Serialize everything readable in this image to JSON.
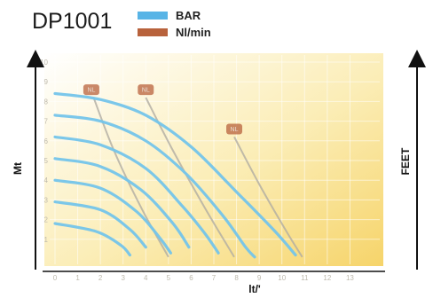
{
  "chart_data": {
    "type": "line",
    "title": "DP1001",
    "xlabel": "lt/'",
    "ylabel": "Mt",
    "y2label": "FEET",
    "legend": {
      "placement": "top",
      "entries": [
        {
          "name": "BAR",
          "color": "#58b4e6"
        },
        {
          "name": "Nl/min",
          "color": "#b8623c"
        }
      ]
    },
    "grid": true,
    "background_gradient": [
      "#ffffff",
      "#f7d870"
    ],
    "xlim": [
      0,
      14
    ],
    "ylim": [
      0,
      10
    ],
    "x_ticks": [
      0,
      1,
      2,
      3,
      4,
      5,
      6,
      7,
      8,
      9,
      10,
      11,
      12,
      13
    ],
    "y_ticks": [
      1,
      2,
      3,
      4,
      5,
      6,
      7,
      8,
      9,
      10
    ],
    "series": [
      {
        "color": "#74c4ea",
        "points": [
          [
            0,
            8.4
          ],
          [
            2,
            8.1
          ],
          [
            4,
            7.3
          ],
          [
            6,
            5.7
          ],
          [
            8,
            3.4
          ],
          [
            9.7,
            1.4
          ],
          [
            10.6,
            0.2
          ]
        ]
      },
      {
        "color": "#74c4ea",
        "points": [
          [
            0,
            7.3
          ],
          [
            2,
            7.0
          ],
          [
            4,
            6.0
          ],
          [
            5.8,
            4.3
          ],
          [
            7.4,
            2.2
          ],
          [
            8.4,
            0.6
          ],
          [
            8.8,
            0.1
          ]
        ]
      },
      {
        "color": "#74c4ea",
        "points": [
          [
            0,
            6.2
          ],
          [
            2,
            5.8
          ],
          [
            4,
            4.6
          ],
          [
            5.6,
            2.7
          ],
          [
            6.6,
            1.3
          ],
          [
            7.2,
            0.3
          ]
        ]
      },
      {
        "color": "#74c4ea",
        "points": [
          [
            0,
            5.1
          ],
          [
            2,
            4.7
          ],
          [
            3.8,
            3.5
          ],
          [
            5.2,
            1.8
          ],
          [
            5.9,
            0.6
          ]
        ]
      },
      {
        "color": "#74c4ea",
        "points": [
          [
            0,
            4.0
          ],
          [
            2,
            3.6
          ],
          [
            3.6,
            2.4
          ],
          [
            4.6,
            1.1
          ],
          [
            5.1,
            0.3
          ]
        ]
      },
      {
        "color": "#74c4ea",
        "points": [
          [
            0,
            2.9
          ],
          [
            2,
            2.5
          ],
          [
            3.3,
            1.5
          ],
          [
            4.0,
            0.6
          ]
        ]
      },
      {
        "color": "#74c4ea",
        "points": [
          [
            0,
            1.8
          ],
          [
            1.8,
            1.4
          ],
          [
            2.9,
            0.7
          ],
          [
            3.3,
            0.2
          ]
        ]
      }
    ],
    "flow_lines": [
      {
        "color": "#b0aca2",
        "points": [
          [
            1.7,
            8.2
          ],
          [
            2.6,
            5.5
          ],
          [
            3.8,
            2.6
          ],
          [
            5.0,
            0.1
          ]
        ]
      },
      {
        "color": "#b0aca2",
        "points": [
          [
            4.0,
            8.2
          ],
          [
            5.2,
            5.5
          ],
          [
            6.6,
            2.6
          ],
          [
            7.9,
            0.1
          ]
        ]
      },
      {
        "color": "#b0aca2",
        "points": [
          [
            7.9,
            6.2
          ],
          [
            9.0,
            3.8
          ],
          [
            10.2,
            1.4
          ],
          [
            10.9,
            0.1
          ]
        ]
      }
    ],
    "markers": [
      {
        "label": "NL",
        "x": 1.6,
        "y": 8.6
      },
      {
        "label": "NL",
        "x": 4.0,
        "y": 8.6
      },
      {
        "label": "NL",
        "x": 7.9,
        "y": 6.6
      }
    ]
  }
}
